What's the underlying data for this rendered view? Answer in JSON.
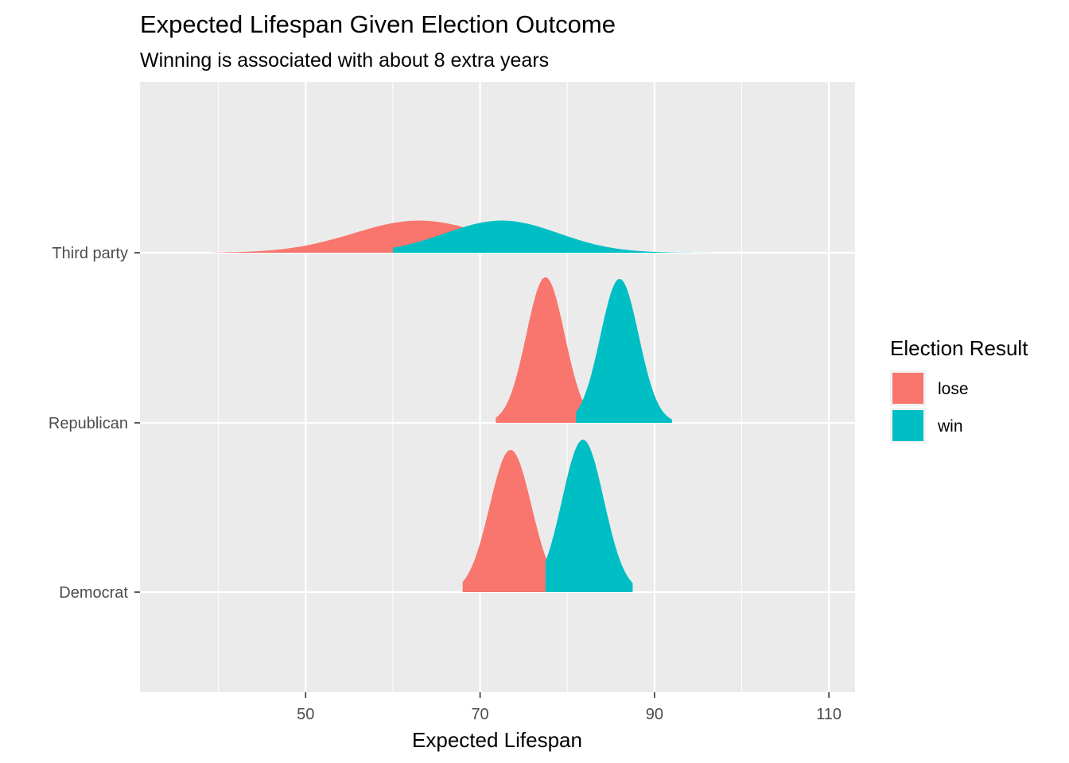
{
  "chart_data": {
    "type": "ridgeline",
    "title": "Expected Lifespan Given Election Outcome",
    "subtitle": "Winning is associated with about 8 extra years",
    "xlabel": "Expected Lifespan",
    "ylabel": "",
    "xlim": [
      31,
      113
    ],
    "x_ticks": [
      50,
      70,
      90,
      110
    ],
    "categories": [
      "Democrat",
      "Republican",
      "Third party"
    ],
    "grid": true,
    "legend": {
      "title": "Election Result",
      "placement": "right",
      "entries": [
        {
          "name": "lose",
          "color": "#F8766D"
        },
        {
          "name": "win",
          "color": "#00BFC4"
        }
      ]
    },
    "series": [
      {
        "name": "lose",
        "color": "#F8766D",
        "distributions": [
          {
            "category": "Democrat",
            "mean": 73.5,
            "sd": 2.4,
            "min": 68.0,
            "max": 79.0,
            "peak": 0.84
          },
          {
            "category": "Republican",
            "mean": 77.5,
            "sd": 2.2,
            "min": 71.8,
            "max": 83.0,
            "peak": 0.86
          },
          {
            "category": "Third party",
            "mean": 63.0,
            "sd": 7.5,
            "min": 39.5,
            "max": 89.0,
            "peak": 0.19
          }
        ]
      },
      {
        "name": "win",
        "color": "#00BFC4",
        "distributions": [
          {
            "category": "Democrat",
            "mean": 81.8,
            "sd": 2.4,
            "min": 77.5,
            "max": 87.5,
            "peak": 0.9
          },
          {
            "category": "Republican",
            "mean": 86.0,
            "sd": 2.2,
            "min": 81.0,
            "max": 92.0,
            "peak": 0.85
          },
          {
            "category": "Third party",
            "mean": 72.5,
            "sd": 6.5,
            "min": 60.0,
            "max": 97.2,
            "peak": 0.19
          }
        ]
      }
    ]
  }
}
